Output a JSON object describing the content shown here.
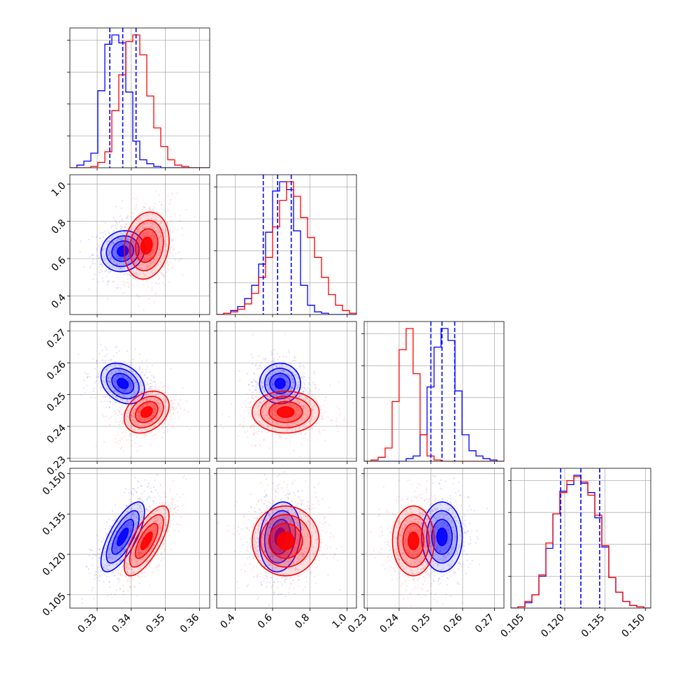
{
  "chart_data": {
    "type": "corner",
    "title": "",
    "parameters": [
      {
        "label": "",
        "range": [
          0.322,
          0.363
        ],
        "ticks": [
          0.33,
          0.34,
          0.35,
          0.36
        ],
        "tick_labels": [
          "0.33",
          "0.34",
          "0.35",
          "0.36"
        ]
      },
      {
        "label": "",
        "range": [
          0.3,
          1.05
        ],
        "ticks": [
          0.4,
          0.6,
          0.8,
          1.0
        ],
        "tick_labels": [
          "0.4",
          "0.6",
          "0.8",
          "1.0"
        ]
      },
      {
        "label": "",
        "range": [
          0.229,
          0.273
        ],
        "ticks": [
          0.23,
          0.24,
          0.25,
          0.26,
          0.27
        ],
        "tick_labels": [
          "0.23",
          "0.24",
          "0.25",
          "0.26",
          "0.27"
        ]
      },
      {
        "label": "",
        "range": [
          0.1,
          0.152
        ],
        "ticks": [
          0.105,
          0.12,
          0.135,
          0.15
        ],
        "tick_labels": [
          "0.105",
          "0.120",
          "0.135",
          "0.150"
        ]
      }
    ],
    "series": [
      {
        "name": "",
        "color": "#0000ff",
        "means": [
          0.3375,
          0.64,
          0.2535,
          0.1265
        ],
        "sigmas": [
          0.0032,
          0.055,
          0.0032,
          0.0065
        ],
        "correlations": {
          "1-0": 0.1,
          "2-0": -0.3,
          "2-1": 0.0,
          "3-0": 0.72,
          "3-1": 0.15,
          "3-2": 0.0
        },
        "quantiles": [
          [
            0.3337,
            0.3375,
            0.3414
          ],
          [
            0.55,
            0.627,
            0.7
          ],
          [
            0.25,
            0.2535,
            0.2575
          ],
          [
            0.1185,
            0.126,
            0.133
          ]
        ],
        "histograms": [
          [
            0.0,
            0.02,
            0.05,
            0.11,
            0.58,
            0.93,
            1.0,
            0.94,
            0.57,
            0.2,
            0.06,
            0.03,
            0.01,
            0.0,
            0.0,
            0.0,
            0.0,
            0.0,
            0.0,
            0.0
          ],
          [
            0.0,
            0.01,
            0.03,
            0.06,
            0.12,
            0.22,
            0.38,
            0.62,
            0.93,
            1.0,
            0.94,
            0.63,
            0.22,
            0.07,
            0.02,
            0.01,
            0.0,
            0.0,
            0.0,
            0.0
          ],
          [
            0.0,
            0.0,
            0.0,
            0.0,
            0.0,
            0.0,
            0.02,
            0.04,
            0.2,
            0.56,
            0.86,
            1.0,
            0.91,
            0.53,
            0.2,
            0.08,
            0.04,
            0.02,
            0.01,
            0.0
          ],
          [
            0.0,
            0.01,
            0.04,
            0.1,
            0.24,
            0.45,
            0.71,
            0.88,
            0.93,
            1.0,
            0.94,
            0.87,
            0.68,
            0.46,
            0.23,
            0.12,
            0.05,
            0.02,
            0.01,
            0.0
          ]
        ]
      },
      {
        "name": "",
        "color": "#ff0000",
        "means": [
          0.3445,
          0.67,
          0.2445,
          0.125
        ],
        "sigmas": [
          0.0033,
          0.09,
          0.0033,
          0.0065
        ],
        "correlations": {
          "1-0": 0.15,
          "2-0": 0.3,
          "2-1": 0.0,
          "3-0": 0.72,
          "3-1": 0.0,
          "3-2": 0.0
        },
        "quantiles": [
          [
            0.341,
            0.3445,
            0.348
          ],
          [
            0.58,
            0.67,
            0.76
          ],
          [
            0.241,
            0.2445,
            0.248
          ],
          [
            0.118,
            0.125,
            0.132
          ]
        ],
        "histograms": [
          [
            0.0,
            0.0,
            0.0,
            0.01,
            0.04,
            0.12,
            0.43,
            0.7,
            0.95,
            1.0,
            0.85,
            0.54,
            0.3,
            0.16,
            0.06,
            0.02,
            0.01,
            0.0,
            0.0,
            0.0
          ],
          [
            0.0,
            0.01,
            0.02,
            0.04,
            0.08,
            0.16,
            0.28,
            0.43,
            0.66,
            0.86,
            1.0,
            0.89,
            0.73,
            0.58,
            0.43,
            0.28,
            0.15,
            0.07,
            0.03,
            0.01
          ],
          [
            0.0,
            0.01,
            0.03,
            0.1,
            0.45,
            0.84,
            1.0,
            0.66,
            0.2,
            0.04,
            0.01,
            0.0,
            0.0,
            0.0,
            0.0,
            0.0,
            0.0,
            0.0,
            0.0,
            0.0
          ],
          [
            0.0,
            0.01,
            0.05,
            0.1,
            0.25,
            0.49,
            0.71,
            0.87,
            0.96,
            0.99,
            0.95,
            0.85,
            0.7,
            0.47,
            0.23,
            0.12,
            0.05,
            0.02,
            0.01,
            0.0
          ]
        ]
      }
    ],
    "contour_levels_sigma": [
      0.5,
      1.0,
      1.5,
      2.0
    ],
    "grid": true,
    "legend": "none"
  }
}
